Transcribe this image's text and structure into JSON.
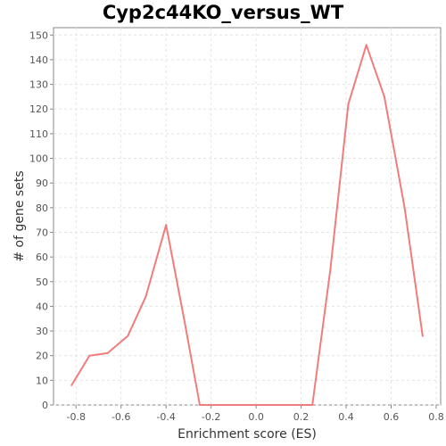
{
  "chart_data": {
    "type": "line",
    "title": "Cyp2c44KO_versus_WT",
    "xlabel": "Enrichment score (ES)",
    "ylabel": "# of gene sets",
    "xlim": [
      -0.9,
      0.82
    ],
    "ylim": [
      0,
      153
    ],
    "x_ticks": [
      -0.8,
      -0.6,
      -0.4,
      -0.2,
      0.0,
      0.2,
      0.4,
      0.6,
      0.8
    ],
    "x_tick_labels": [
      "-0.8",
      "-0.6",
      "-0.4",
      "-0.2",
      "0.0",
      "0.2",
      "0.4",
      "0.6",
      "0.8"
    ],
    "y_ticks": [
      0,
      10,
      20,
      30,
      40,
      50,
      60,
      70,
      80,
      90,
      100,
      110,
      120,
      130,
      140,
      150
    ],
    "grid": true,
    "legend": "none",
    "series": [
      {
        "color": "#f07c7c",
        "x": [
          -0.82,
          -0.74,
          -0.66,
          -0.57,
          -0.49,
          -0.4,
          -0.32,
          -0.25,
          -0.17,
          -0.09,
          0.0,
          0.09,
          0.17,
          0.25,
          0.33,
          0.41,
          0.49,
          0.57,
          0.66,
          0.74
        ],
        "y": [
          8,
          20,
          21,
          28,
          44,
          73,
          35,
          0,
          0,
          0,
          0,
          0,
          0,
          0,
          55,
          122,
          146,
          125,
          80,
          28
        ]
      }
    ]
  }
}
